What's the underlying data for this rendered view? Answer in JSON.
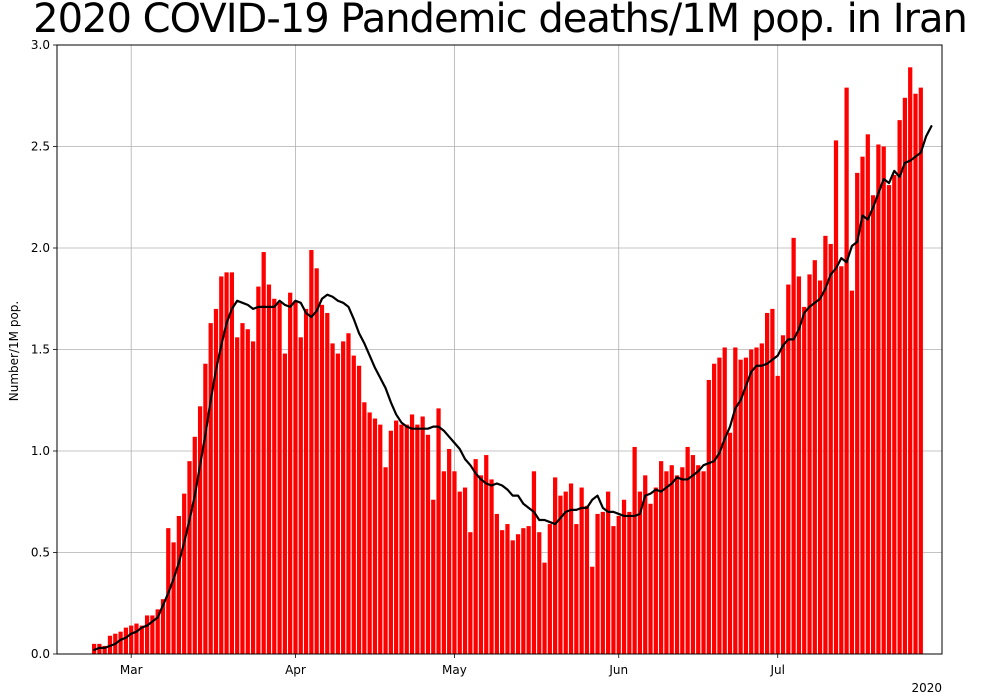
{
  "chart_data": {
    "type": "bar",
    "title": "2020 COVID-19 Pandemic deaths/1M pop. in Iran",
    "xlabel": "",
    "ylabel": "Number/1M pop.",
    "year_label": "2020",
    "start_date": "2020-02-23",
    "x_ticks": [
      {
        "label": "Mar",
        "date": "2020-03-01"
      },
      {
        "label": "Apr",
        "date": "2020-04-01"
      },
      {
        "label": "May",
        "date": "2020-05-01"
      },
      {
        "label": "Jun",
        "date": "2020-06-01"
      },
      {
        "label": "Jul",
        "date": "2020-07-01"
      }
    ],
    "y_ticks": [
      "0.0",
      "0.5",
      "1.0",
      "1.5",
      "2.0",
      "2.5",
      "3.0"
    ],
    "ylim": [
      0,
      3.0
    ],
    "xlim": [
      "2020-02-16",
      "2020-08-01"
    ],
    "grid": true,
    "series": [
      {
        "type": "bar",
        "values": [
          0.05,
          0.05,
          0.04,
          0.09,
          0.1,
          0.11,
          0.13,
          0.14,
          0.15,
          0.14,
          0.19,
          0.19,
          0.22,
          0.27,
          0.62,
          0.55,
          0.68,
          0.79,
          0.95,
          1.07,
          1.22,
          1.43,
          1.63,
          1.7,
          1.86,
          1.88,
          1.88,
          1.56,
          1.63,
          1.6,
          1.54,
          1.81,
          1.98,
          1.82,
          1.75,
          1.73,
          1.48,
          1.78,
          1.74,
          1.56,
          1.7,
          1.99,
          1.9,
          1.72,
          1.68,
          1.53,
          1.48,
          1.54,
          1.58,
          1.47,
          1.42,
          1.24,
          1.19,
          1.16,
          1.13,
          0.92,
          1.1,
          1.15,
          1.13,
          1.13,
          1.18,
          1.13,
          1.17,
          1.08,
          0.76,
          1.21,
          0.9,
          1.01,
          0.9,
          0.8,
          0.82,
          0.6,
          0.96,
          0.88,
          0.98,
          0.86,
          0.69,
          0.61,
          0.64,
          0.56,
          0.59,
          0.62,
          0.63,
          0.9,
          0.6,
          0.45,
          0.64,
          0.87,
          0.78,
          0.8,
          0.84,
          0.64,
          0.82,
          0.73,
          0.43,
          0.69,
          0.7,
          0.8,
          0.63,
          0.68,
          0.76,
          0.7,
          1.02,
          0.8,
          0.88,
          0.74,
          0.82,
          0.95,
          0.9,
          0.93,
          0.88,
          0.92,
          1.02,
          0.98,
          0.93,
          0.9,
          1.35,
          1.43,
          1.46,
          1.51,
          1.09,
          1.51,
          1.45,
          1.46,
          1.5,
          1.51,
          1.53,
          1.68,
          1.7,
          1.37,
          1.57,
          1.82,
          2.05,
          1.86,
          1.71,
          1.87,
          1.94,
          1.84,
          2.06,
          2.02,
          2.53,
          1.91,
          2.79,
          1.79,
          2.37,
          2.45,
          2.56,
          2.26,
          2.51,
          2.5,
          2.31,
          2.36,
          2.63,
          2.74,
          2.89,
          2.76,
          2.79
        ]
      },
      {
        "type": "line",
        "values": [
          0.02,
          0.03,
          0.03,
          0.04,
          0.05,
          0.07,
          0.08,
          0.1,
          0.11,
          0.13,
          0.14,
          0.16,
          0.18,
          0.24,
          0.3,
          0.37,
          0.45,
          0.55,
          0.66,
          0.78,
          0.93,
          1.08,
          1.25,
          1.4,
          1.52,
          1.63,
          1.7,
          1.74,
          1.73,
          1.72,
          1.7,
          1.71,
          1.71,
          1.71,
          1.71,
          1.74,
          1.72,
          1.71,
          1.74,
          1.73,
          1.68,
          1.66,
          1.69,
          1.75,
          1.77,
          1.76,
          1.74,
          1.73,
          1.71,
          1.65,
          1.58,
          1.53,
          1.47,
          1.41,
          1.36,
          1.31,
          1.24,
          1.18,
          1.14,
          1.12,
          1.11,
          1.11,
          1.11,
          1.11,
          1.12,
          1.12,
          1.1,
          1.07,
          1.04,
          1.01,
          0.96,
          0.93,
          0.89,
          0.86,
          0.84,
          0.83,
          0.84,
          0.83,
          0.81,
          0.78,
          0.78,
          0.74,
          0.72,
          0.7,
          0.66,
          0.66,
          0.65,
          0.64,
          0.67,
          0.7,
          0.71,
          0.71,
          0.72,
          0.72,
          0.76,
          0.78,
          0.72,
          0.7,
          0.7,
          0.69,
          0.68,
          0.68,
          0.68,
          0.69,
          0.78,
          0.79,
          0.81,
          0.8,
          0.82,
          0.84,
          0.87,
          0.86,
          0.86,
          0.88,
          0.9,
          0.93,
          0.94,
          0.95,
          0.99,
          1.06,
          1.12,
          1.21,
          1.25,
          1.32,
          1.39,
          1.42,
          1.42,
          1.43,
          1.45,
          1.47,
          1.52,
          1.55,
          1.55,
          1.6,
          1.68,
          1.71,
          1.73,
          1.75,
          1.8,
          1.87,
          1.9,
          1.95,
          1.93,
          2.01,
          2.03,
          2.16,
          2.14,
          2.2,
          2.27,
          2.34,
          2.32,
          2.38,
          2.35,
          2.42,
          2.43,
          2.45,
          2.47,
          2.55,
          2.6
        ]
      }
    ]
  }
}
